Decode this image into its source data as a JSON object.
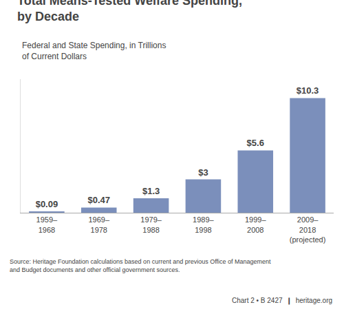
{
  "chart_data": {
    "type": "bar",
    "title": "Total Means-Tested Welfare Spending,\nby Decade",
    "subtitle": "Federal and State Spending, in Trillions\nof Current Dollars",
    "categories": [
      "1959–\n1968",
      "1969–\n1978",
      "1979–\n1988",
      "1989–\n1998",
      "1999–\n2008",
      "2009–\n2018\n(projected)"
    ],
    "values": [
      0.09,
      0.47,
      1.3,
      3.0,
      5.6,
      10.3
    ],
    "value_labels": [
      "$0.09",
      "$0.47",
      "$1.3",
      "$3",
      "$5.6",
      "$10.3"
    ],
    "data_labels": true,
    "color": "#7b8fbb",
    "ylim": [
      0,
      12.0
    ],
    "tick_labels": "x",
    "grid": false,
    "annotations": [
      "Source: Heritage Foundation calculations based on current and previous Office of Management\nand Budget documents and other official government sources.",
      "Chart 2 • B 2427  ❙  heritage.org"
    ]
  }
}
